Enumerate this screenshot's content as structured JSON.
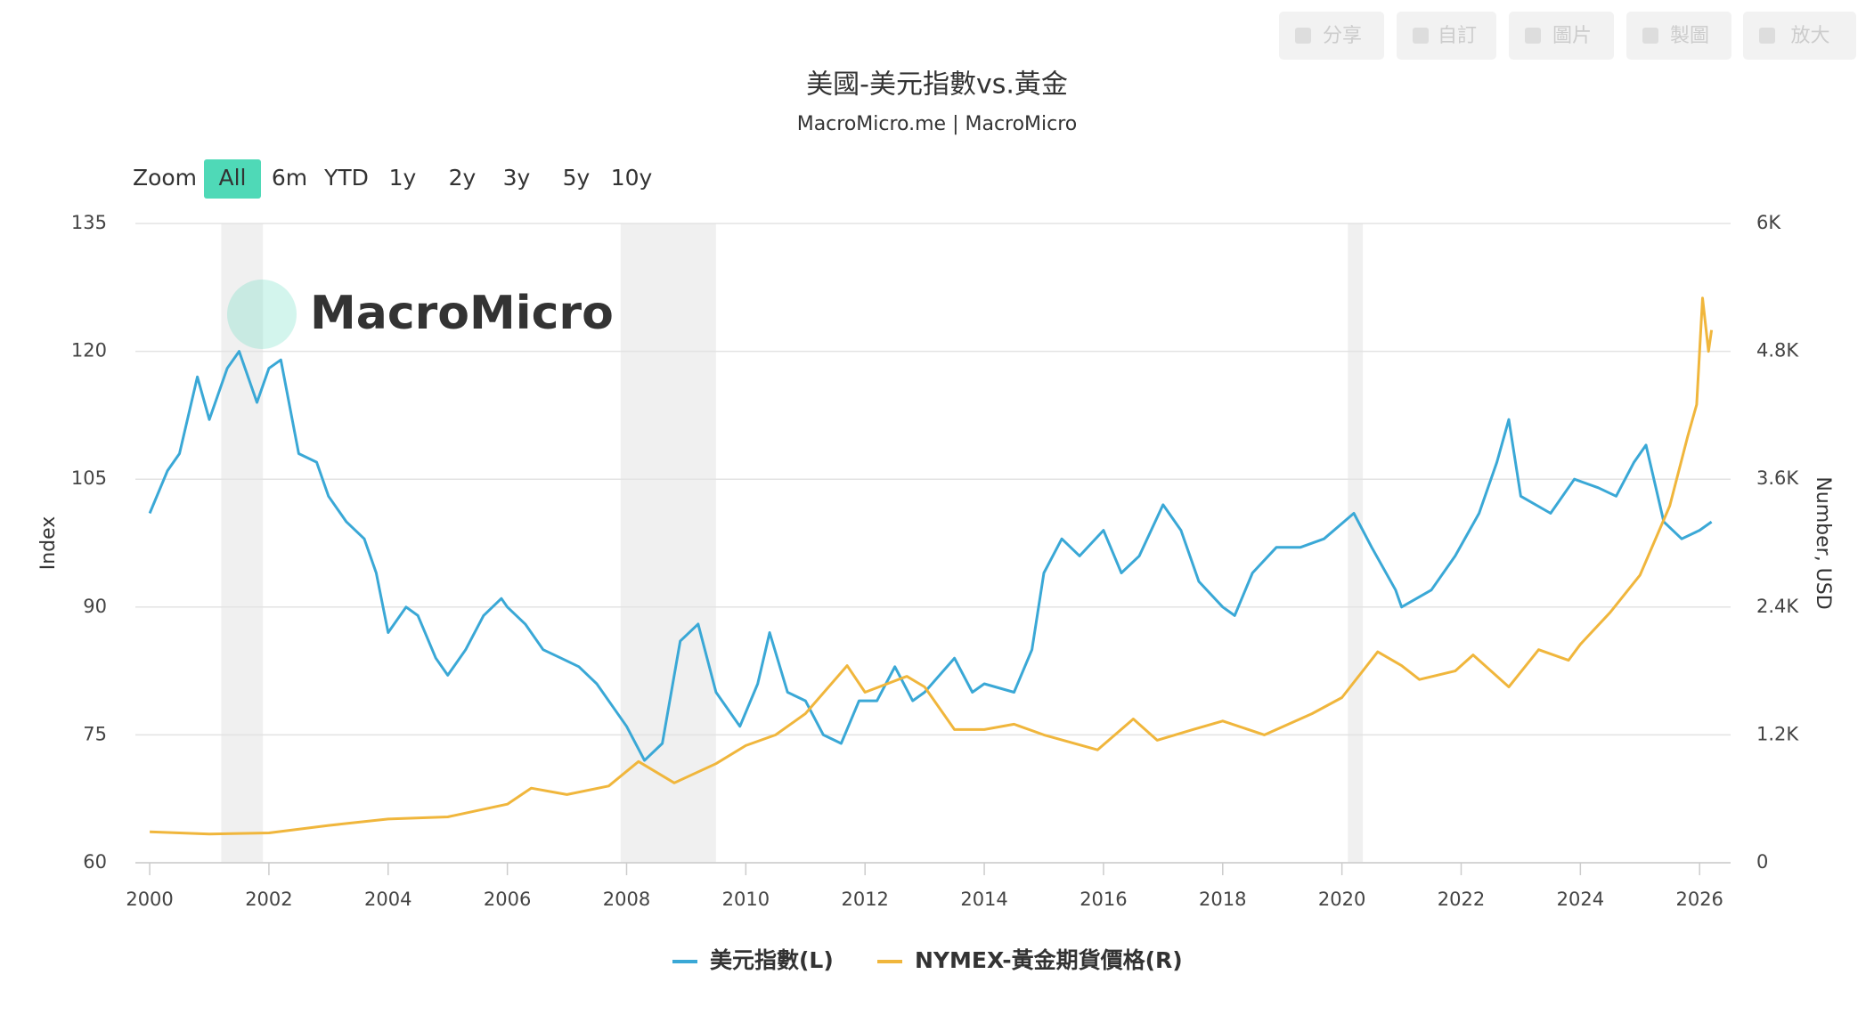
{
  "toolbar": [
    "分享",
    "自訂",
    "圖片",
    "製圖",
    "放大"
  ],
  "range_selector": {
    "label": "Zoom",
    "buttons": [
      "All",
      "6m",
      "YTD",
      "1y",
      "2y",
      "3y",
      "5y",
      "10y"
    ],
    "active": 0
  },
  "watermark": "MacroMicro",
  "chart_data": {
    "type": "line",
    "title": "美國-美元指數vs.黃金",
    "subtitle": "MacroMicro.me | MacroMicro",
    "y_label": "Index",
    "y2_label": "Number, USD",
    "xlim": [
      1999.76,
      2026.52
    ],
    "xticks": [
      2000,
      2002,
      2004,
      2006,
      2008,
      2010,
      2012,
      2014,
      2016,
      2018,
      2020,
      2022,
      2024,
      2026
    ],
    "ylim": [
      60,
      135
    ],
    "yticks": [
      60,
      75,
      90,
      105,
      120,
      135
    ],
    "y2lim": [
      0,
      6000
    ],
    "y2ticks": [
      0,
      {
        "value": 1200,
        "label": "1.2K"
      },
      {
        "value": 2400,
        "label": "2.4K"
      },
      {
        "value": 3600,
        "label": "3.6K"
      },
      {
        "value": 4800,
        "label": "4.8K"
      },
      {
        "value": 6000,
        "label": "6K"
      }
    ],
    "grid": true,
    "shaded_x": [
      [
        2001.2,
        2001.9
      ],
      [
        2007.9,
        2009.5
      ],
      [
        2020.1,
        2020.35
      ]
    ],
    "series": [
      {
        "name": "美元指數(L)",
        "color": "#3aa8d6",
        "axis": "y",
        "x": [
          2000.0,
          2000.3,
          2000.5,
          2000.8,
          2001.0,
          2001.3,
          2001.5,
          2001.8,
          2002.0,
          2002.2,
          2002.5,
          2002.8,
          2003.0,
          2003.3,
          2003.6,
          2003.8,
          2004.0,
          2004.3,
          2004.5,
          2004.8,
          2005.0,
          2005.3,
          2005.6,
          2005.9,
          2006.0,
          2006.3,
          2006.6,
          2006.9,
          2007.2,
          2007.5,
          2007.8,
          2008.0,
          2008.3,
          2008.6,
          2008.9,
          2009.2,
          2009.5,
          2009.9,
          2010.2,
          2010.4,
          2010.7,
          2011.0,
          2011.3,
          2011.6,
          2011.9,
          2012.2,
          2012.5,
          2012.8,
          2013.0,
          2013.5,
          2013.8,
          2014.0,
          2014.5,
          2014.8,
          2015.0,
          2015.3,
          2015.6,
          2016.0,
          2016.3,
          2016.6,
          2017.0,
          2017.3,
          2017.6,
          2018.0,
          2018.2,
          2018.5,
          2018.9,
          2019.3,
          2019.7,
          2020.2,
          2020.5,
          2020.9,
          2021.0,
          2021.5,
          2021.9,
          2022.3,
          2022.6,
          2022.8,
          2023.0,
          2023.5,
          2023.9,
          2024.3,
          2024.6,
          2024.9,
          2025.1,
          2025.4,
          2025.7,
          2026.0,
          2026.2
        ],
        "values": [
          101,
          106,
          108,
          117,
          112,
          118,
          120,
          114,
          118,
          119,
          108,
          107,
          103,
          100,
          98,
          94,
          87,
          90,
          89,
          84,
          82,
          85,
          89,
          91,
          90,
          88,
          85,
          84,
          83,
          81,
          78,
          76,
          72,
          74,
          86,
          88,
          80,
          76,
          81,
          87,
          80,
          79,
          75,
          74,
          79,
          79,
          83,
          79,
          80,
          84,
          80,
          81,
          80,
          85,
          94,
          98,
          96,
          99,
          94,
          96,
          102,
          99,
          93,
          90,
          89,
          94,
          97,
          97,
          98,
          101,
          97,
          92,
          90,
          92,
          96,
          101,
          107,
          112,
          103,
          101,
          105,
          104,
          103,
          107,
          109,
          100,
          98,
          99,
          100
        ]
      },
      {
        "name": "NYMEX-黃金期貨價格(R)",
        "color": "#f0b63c",
        "axis": "y2",
        "x": [
          2000.0,
          2001.0,
          2002.0,
          2003.0,
          2004.0,
          2005.0,
          2006.0,
          2006.4,
          2007.0,
          2007.7,
          2008.2,
          2008.8,
          2009.5,
          2010.0,
          2010.5,
          2011.0,
          2011.7,
          2012.0,
          2012.7,
          2013.0,
          2013.5,
          2014.0,
          2014.5,
          2015.0,
          2015.9,
          2016.5,
          2016.9,
          2017.5,
          2018.0,
          2018.7,
          2019.5,
          2020.0,
          2020.6,
          2021.0,
          2021.3,
          2021.9,
          2022.2,
          2022.8,
          2023.3,
          2023.8,
          2024.0,
          2024.5,
          2025.0,
          2025.5,
          2025.8,
          2025.95,
          2026.05,
          2026.15,
          2026.2
        ],
        "values": [
          290,
          270,
          280,
          350,
          410,
          430,
          550,
          700,
          640,
          720,
          950,
          750,
          930,
          1100,
          1200,
          1400,
          1850,
          1600,
          1750,
          1650,
          1250,
          1250,
          1300,
          1200,
          1060,
          1350,
          1150,
          1250,
          1330,
          1200,
          1400,
          1550,
          1980,
          1850,
          1720,
          1800,
          1950,
          1650,
          2000,
          1900,
          2050,
          2350,
          2700,
          3350,
          4000,
          4300,
          5300,
          4800,
          5000
        ]
      }
    ]
  }
}
